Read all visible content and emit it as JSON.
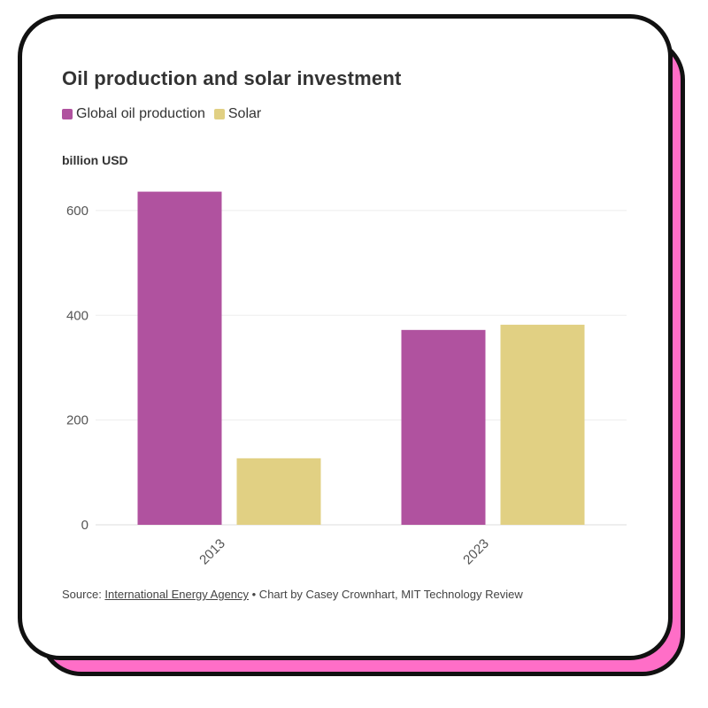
{
  "colors": {
    "oil": "#b0529f",
    "solar": "#e1d083",
    "grid": "#eeeeee",
    "accent": "#ff6ec7"
  },
  "legend": [
    {
      "label": "Global oil production",
      "color_key": "oil"
    },
    {
      "label": "Solar",
      "color_key": "solar"
    }
  ],
  "source": {
    "prefix": "Source: ",
    "link": "International Energy Agency",
    "suffix": " • Chart by Casey Crownhart, MIT Technology Review"
  },
  "chart_data": {
    "type": "bar",
    "title": "Oil production and solar investment",
    "ylabel": "billion USD",
    "xlabel": "",
    "categories": [
      "2013",
      "2023"
    ],
    "series": [
      {
        "name": "Global oil production",
        "values": [
          636,
          372
        ]
      },
      {
        "name": "Solar",
        "values": [
          127,
          382
        ]
      }
    ],
    "ylim": [
      0,
      650
    ],
    "yticks": [
      0,
      200,
      400,
      600
    ],
    "grid": true,
    "legend_position": "top-left"
  }
}
